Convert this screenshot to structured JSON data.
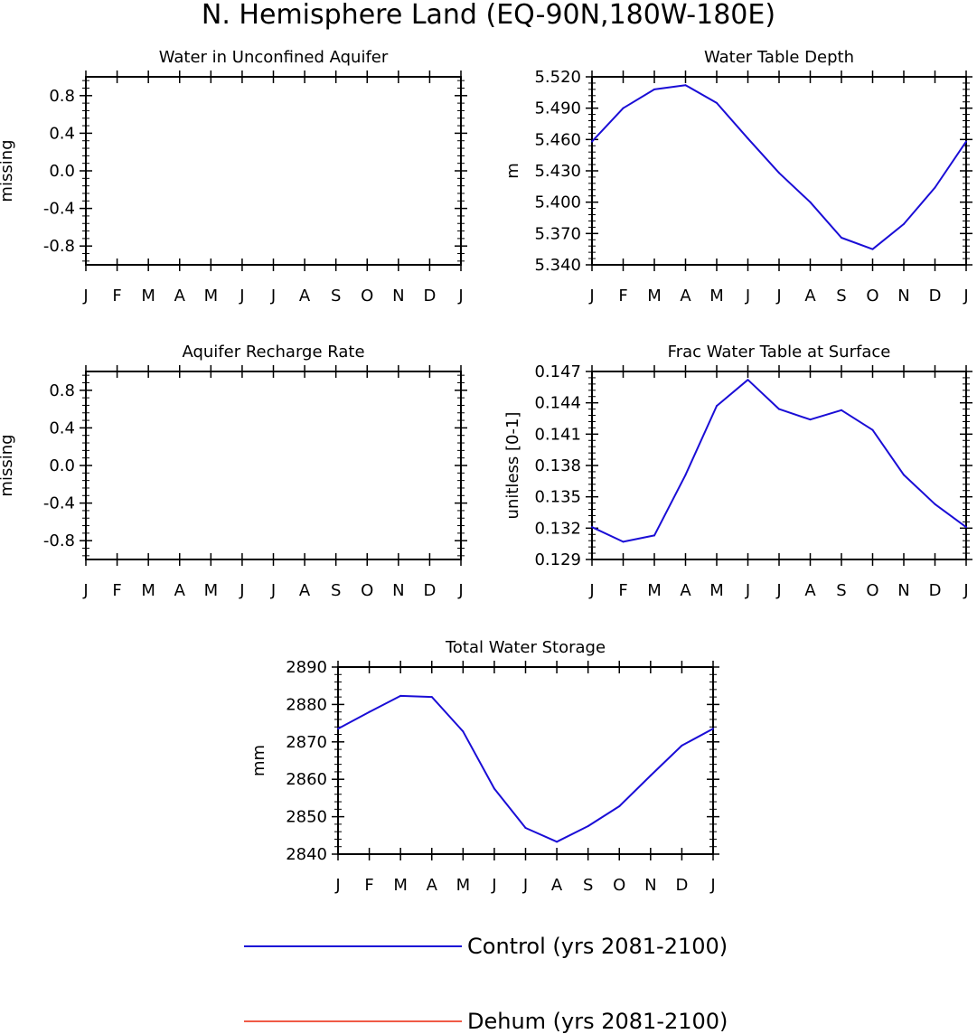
{
  "figure": {
    "title": "N. Hemisphere Land (EQ-90N,180W-180E)"
  },
  "legend": [
    {
      "label": "Control (yrs 2081-2100)",
      "color": "#1a0dd6"
    },
    {
      "label": "Dehum (yrs 2081-2100)",
      "color": "#f05a46"
    }
  ],
  "chart_data": [
    {
      "type": "line",
      "title": "Water in Unconfined Aquifer",
      "ylabel": "missing",
      "xlabel": "",
      "categories": [
        "J",
        "F",
        "M",
        "A",
        "M",
        "J",
        "J",
        "A",
        "S",
        "O",
        "N",
        "D",
        "J"
      ],
      "ylim": [
        -1.0,
        1.0
      ],
      "yticks": [
        -0.8,
        -0.4,
        0.0,
        0.4,
        0.8
      ],
      "ytick_labels": [
        "-0.8",
        "-0.4",
        "0.0",
        "0.4",
        "0.8"
      ],
      "series": []
    },
    {
      "type": "line",
      "title": "Water Table Depth",
      "ylabel": "m",
      "xlabel": "",
      "categories": [
        "J",
        "F",
        "M",
        "A",
        "M",
        "J",
        "J",
        "A",
        "S",
        "O",
        "N",
        "D",
        "J"
      ],
      "ylim": [
        5.34,
        5.52
      ],
      "yticks": [
        5.34,
        5.37,
        5.4,
        5.43,
        5.46,
        5.49,
        5.52
      ],
      "ytick_labels": [
        "5.340",
        "5.370",
        "5.400",
        "5.430",
        "5.460",
        "5.490",
        "5.520"
      ],
      "series": [
        {
          "name": "Control (yrs 2081-2100)",
          "values": [
            5.458,
            5.49,
            5.508,
            5.512,
            5.495,
            5.461,
            5.428,
            5.4,
            5.366,
            5.355,
            5.379,
            5.414,
            5.458
          ]
        }
      ]
    },
    {
      "type": "line",
      "title": "Aquifer Recharge Rate",
      "ylabel": "missing",
      "xlabel": "",
      "categories": [
        "J",
        "F",
        "M",
        "A",
        "M",
        "J",
        "J",
        "A",
        "S",
        "O",
        "N",
        "D",
        "J"
      ],
      "ylim": [
        -1.0,
        1.0
      ],
      "yticks": [
        -0.8,
        -0.4,
        0.0,
        0.4,
        0.8
      ],
      "ytick_labels": [
        "-0.8",
        "-0.4",
        "0.0",
        "0.4",
        "0.8"
      ],
      "series": []
    },
    {
      "type": "line",
      "title": "Frac Water Table at Surface",
      "ylabel": "unitless [0-1]",
      "xlabel": "",
      "categories": [
        "J",
        "F",
        "M",
        "A",
        "M",
        "J",
        "J",
        "A",
        "S",
        "O",
        "N",
        "D",
        "J"
      ],
      "ylim": [
        0.129,
        0.147
      ],
      "yticks": [
        0.129,
        0.132,
        0.135,
        0.138,
        0.141,
        0.144,
        0.147
      ],
      "ytick_labels": [
        "0.129",
        "0.132",
        "0.135",
        "0.138",
        "0.141",
        "0.144",
        "0.147"
      ],
      "series": [
        {
          "name": "Control (yrs 2081-2100)",
          "values": [
            0.1321,
            0.1307,
            0.1313,
            0.1371,
            0.1437,
            0.1462,
            0.1434,
            0.1424,
            0.1433,
            0.1414,
            0.1371,
            0.1343,
            0.1321
          ]
        }
      ]
    },
    {
      "type": "line",
      "title": "Total Water Storage",
      "ylabel": "mm",
      "xlabel": "",
      "categories": [
        "J",
        "F",
        "M",
        "A",
        "M",
        "J",
        "J",
        "A",
        "S",
        "O",
        "N",
        "D",
        "J"
      ],
      "ylim": [
        2840,
        2890
      ],
      "yticks": [
        2840,
        2850,
        2860,
        2870,
        2880,
        2890
      ],
      "ytick_labels": [
        "2840",
        "2850",
        "2860",
        "2870",
        "2880",
        "2890"
      ],
      "series": [
        {
          "name": "Control (yrs 2081-2100)",
          "values": [
            2873.5,
            2878.0,
            2882.3,
            2882.0,
            2872.8,
            2857.5,
            2847.0,
            2843.3,
            2847.5,
            2852.8,
            2861.0,
            2869.0,
            2873.5
          ]
        }
      ]
    }
  ]
}
